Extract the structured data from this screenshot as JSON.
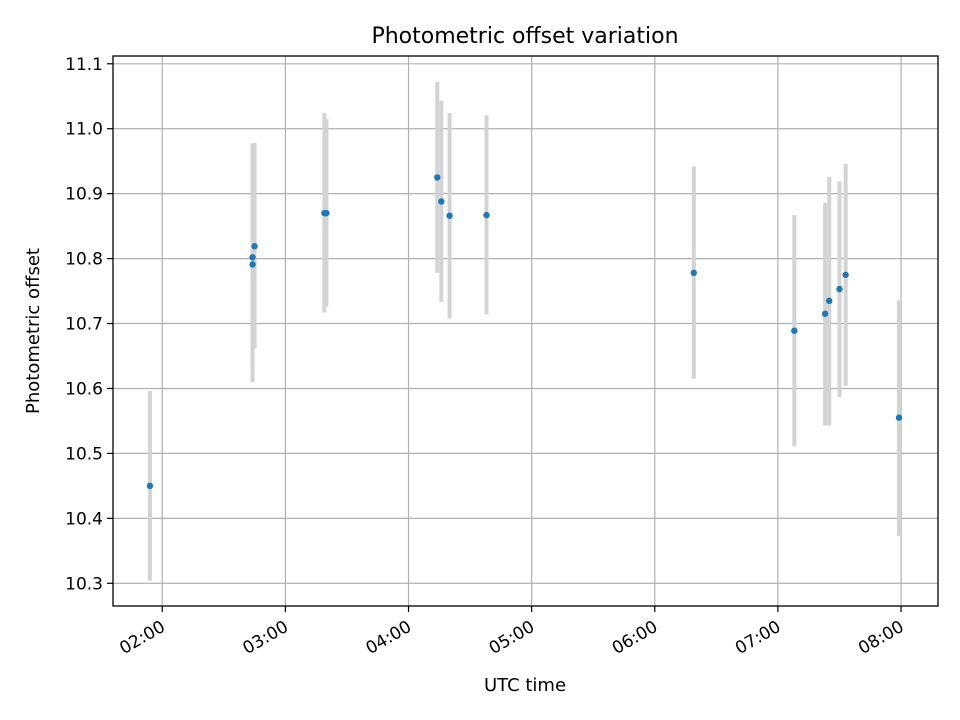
{
  "chart_data": {
    "type": "scatter",
    "title": "Photometric offset variation",
    "xlabel": "UTC time",
    "ylabel": "Photometric offset",
    "x_unit": "UTC time (HH:MM)",
    "xlim": [
      "01:36",
      "08:18"
    ],
    "ylim": [
      10.265,
      11.112
    ],
    "x_ticks": [
      "02:00",
      "03:00",
      "04:00",
      "05:00",
      "06:00",
      "07:00",
      "08:00"
    ],
    "y_ticks": [
      "10.3",
      "10.4",
      "10.5",
      "10.6",
      "10.7",
      "10.8",
      "10.9",
      "11.0",
      "11.1"
    ],
    "grid": true,
    "legend": "none",
    "colors": {
      "point": "#1f77b4",
      "errorbar": "#d3d3d3",
      "grid": "#b0b0b0"
    },
    "series": [
      {
        "points": [
          {
            "x": "01:54",
            "y": 10.45,
            "ylo": 10.304,
            "yhi": 10.596
          },
          {
            "x": "02:44",
            "y": 10.791,
            "ylo": 10.61,
            "yhi": 10.978
          },
          {
            "x": "02:44",
            "y": 10.802,
            "ylo": 10.628,
            "yhi": 10.978
          },
          {
            "x": "02:45",
            "y": 10.819,
            "ylo": 10.662,
            "yhi": 10.978
          },
          {
            "x": "03:19",
            "y": 10.87,
            "ylo": 10.717,
            "yhi": 11.024
          },
          {
            "x": "03:20",
            "y": 10.87,
            "ylo": 10.726,
            "yhi": 11.015
          },
          {
            "x": "04:14",
            "y": 10.925,
            "ylo": 10.778,
            "yhi": 11.072
          },
          {
            "x": "04:16",
            "y": 10.888,
            "ylo": 10.733,
            "yhi": 11.043
          },
          {
            "x": "04:20",
            "y": 10.866,
            "ylo": 10.708,
            "yhi": 11.024
          },
          {
            "x": "04:38",
            "y": 10.867,
            "ylo": 10.714,
            "yhi": 11.021
          },
          {
            "x": "06:19",
            "y": 10.778,
            "ylo": 10.615,
            "yhi": 10.942
          },
          {
            "x": "07:08",
            "y": 10.689,
            "ylo": 10.511,
            "yhi": 10.867
          },
          {
            "x": "07:23",
            "y": 10.715,
            "ylo": 10.543,
            "yhi": 10.886
          },
          {
            "x": "07:25",
            "y": 10.735,
            "ylo": 10.543,
            "yhi": 10.926
          },
          {
            "x": "07:30",
            "y": 10.753,
            "ylo": 10.587,
            "yhi": 10.919
          },
          {
            "x": "07:33",
            "y": 10.775,
            "ylo": 10.604,
            "yhi": 10.946
          },
          {
            "x": "07:59",
            "y": 10.555,
            "ylo": 10.373,
            "yhi": 10.736
          }
        ]
      }
    ]
  }
}
